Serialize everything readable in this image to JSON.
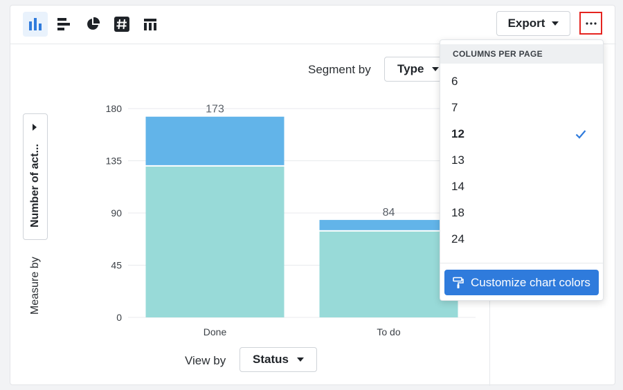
{
  "toolbar": {
    "chart_types": [
      {
        "name": "vertical-bar-chart",
        "icon": "vertical-bars-icon",
        "active": true
      },
      {
        "name": "horizontal-bar-chart",
        "icon": "horizontal-bars-icon",
        "active": false
      },
      {
        "name": "pie-chart",
        "icon": "pie-icon",
        "active": false
      },
      {
        "name": "number-chart",
        "icon": "hash-icon",
        "active": false
      },
      {
        "name": "table-chart",
        "icon": "table-icon",
        "active": false
      }
    ],
    "export_label": "Export",
    "more_icon": "ellipsis-icon"
  },
  "segment": {
    "label": "Segment by",
    "value": "Type"
  },
  "measure": {
    "value": "Number of act...",
    "label": "Measure by"
  },
  "view_by": {
    "label": "View by",
    "value": "Status"
  },
  "dropdown": {
    "header": "COLUMNS PER PAGE",
    "options": [
      "6",
      "7",
      "12",
      "13",
      "14",
      "18",
      "24"
    ],
    "selected": "12",
    "customize_label": "Customize chart colors",
    "customize_icon": "paint-roller-icon"
  },
  "colors": {
    "accent": "#2f7bdc",
    "series_blue": "#62b4e9",
    "series_teal": "#98dad8",
    "highlight_border": "#e5241f"
  },
  "chart_data": {
    "type": "bar",
    "stacked": true,
    "categories": [
      "Done",
      "To do"
    ],
    "series": [
      {
        "values": [
          130,
          74
        ],
        "color": "#98dad8"
      },
      {
        "values": [
          43,
          10
        ],
        "color": "#62b4e9"
      }
    ],
    "totals": [
      "173",
      "84"
    ],
    "ylim": [
      0,
      180
    ],
    "yticks": [
      "0",
      "45",
      "90",
      "135",
      "180"
    ],
    "grid": true
  }
}
